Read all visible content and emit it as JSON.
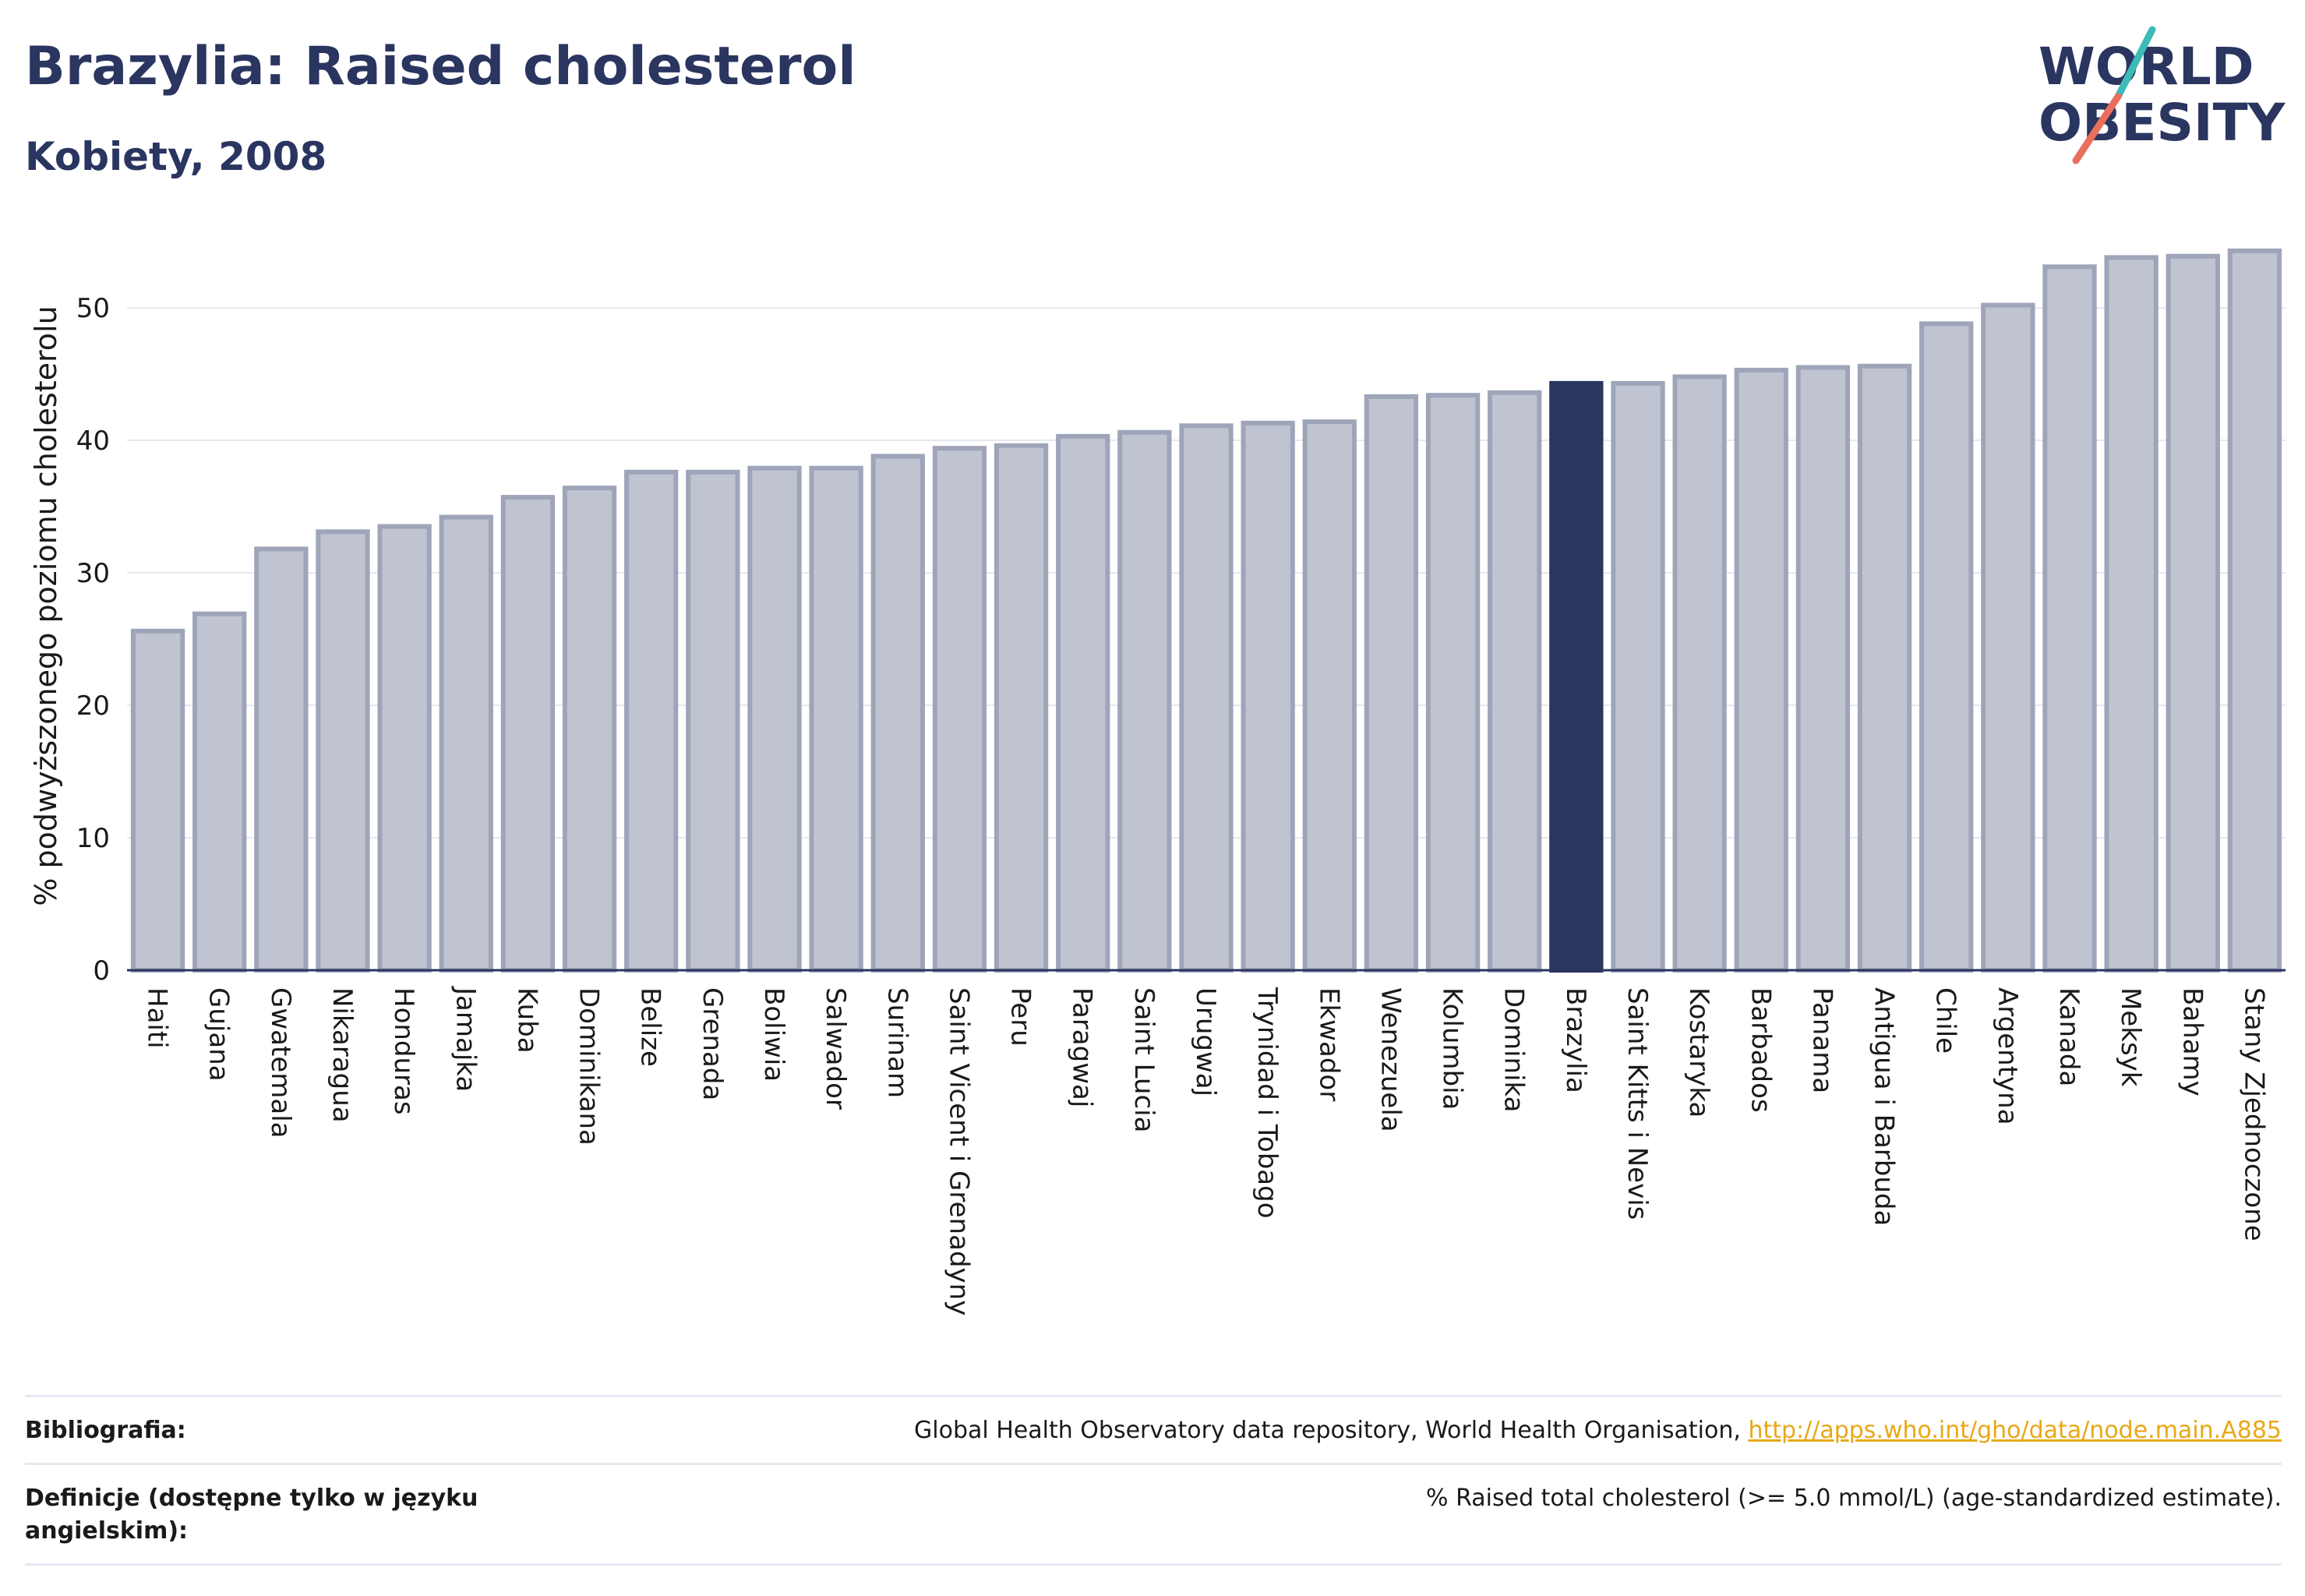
{
  "header": {
    "title": "Brazylia: Raised cholesterol",
    "subtitle": "Kobiety, 2008"
  },
  "logo": {
    "line1": "WORLD",
    "line2": "OBESITY"
  },
  "colors": {
    "bar": "#c0c4d1",
    "bar_stroke": "#9fa5b9",
    "highlight": "#2a3560",
    "grid": "#e6e8ee",
    "axis": "#2a3560",
    "logo_teal": "#3dbbb6",
    "logo_coral": "#e96e5c"
  },
  "chart_data": {
    "type": "bar",
    "title": "Brazylia: Raised cholesterol",
    "subtitle": "Kobiety, 2008",
    "ylabel": "% podwyższonego poziomu cholesterolu",
    "xlabel": "",
    "ylim": [
      0,
      55
    ],
    "yticks": [
      0,
      10,
      20,
      30,
      40,
      50
    ],
    "grid": true,
    "highlight": "Brazylia",
    "categories": [
      "Haiti",
      "Gujana",
      "Gwatemala",
      "Nikaragua",
      "Honduras",
      "Jamajka",
      "Kuba",
      "Dominikana",
      "Belize",
      "Grenada",
      "Boliwia",
      "Salwador",
      "Surinam",
      "Saint Vicent i Grenadyny",
      "Peru",
      "Paragwaj",
      "Saint Lucia",
      "Urugwaj",
      "Trynidad i Tobago",
      "Ekwador",
      "Wenezuela",
      "Kolumbia",
      "Dominika",
      "Brazylia",
      "Saint Kitts i Nevis",
      "Kostaryka",
      "Barbados",
      "Panama",
      "Antigua i Barbuda",
      "Chile",
      "Argentyna",
      "Kanada",
      "Meksyk",
      "Bahamy",
      "Stany Zjednoczone"
    ],
    "values": [
      25.6,
      26.9,
      31.8,
      33.1,
      33.5,
      34.2,
      35.7,
      36.4,
      37.6,
      37.6,
      37.9,
      37.9,
      38.8,
      39.4,
      39.6,
      40.3,
      40.6,
      41.1,
      41.3,
      41.4,
      43.3,
      43.4,
      43.6,
      44.3,
      44.3,
      44.8,
      45.3,
      45.5,
      45.6,
      48.8,
      50.2,
      53.1,
      53.8,
      53.9,
      54.3
    ]
  },
  "footer": {
    "bib_label": "Bibliografia:",
    "bib_text": "Global Health Observatory data repository, World Health Organisation, ",
    "bib_link": "http://apps.who.int/gho/data/node.main.A885",
    "def_label": "Definicje (dostępne tylko w języku angielskim):",
    "def_text": "% Raised total cholesterol (>= 5.0 mmol/L) (age-standardized estimate)."
  }
}
